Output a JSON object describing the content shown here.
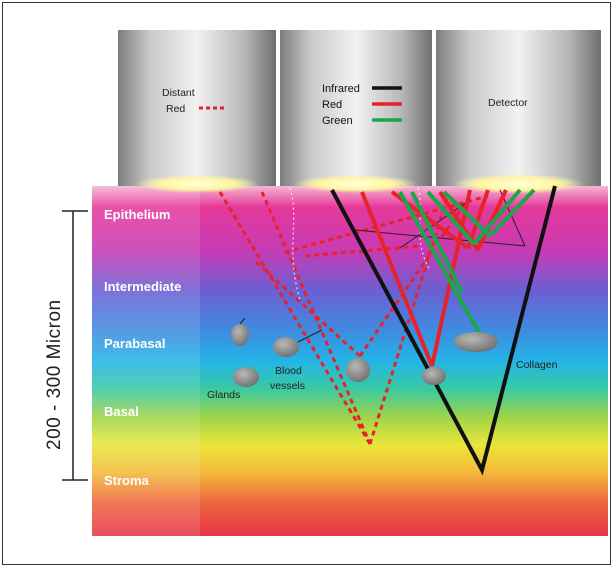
{
  "probes": {
    "distant": {
      "line1": "Distant",
      "line2": "Red"
    },
    "legend": {
      "infrared": "Infrared",
      "red": "Red",
      "green": "Green"
    },
    "detector": "Detector"
  },
  "layers": [
    "Epithelium",
    "Intermediate",
    "Parabasal",
    "Basal",
    "Stroma"
  ],
  "scale_label": "200 - 300 Micron",
  "annotations": {
    "glands": "Glands",
    "blood1": "Blood",
    "blood2": "vessels",
    "collagen": "Collagen"
  },
  "colors": {
    "infrared": "#111111",
    "red": "#e8222a",
    "green": "#1aa64a",
    "distant_red": "#e8222a"
  }
}
